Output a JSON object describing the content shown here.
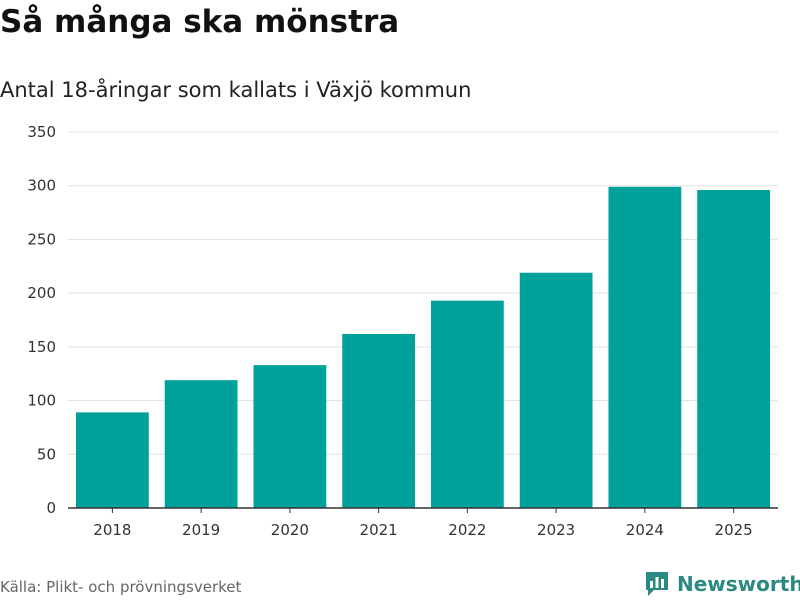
{
  "header": {
    "title": "Så många ska mönstra",
    "subtitle": "Antal 18-åringar som kallats i Växjö kommun"
  },
  "footer": {
    "source": "Källa: Plikt- och prövningsverket",
    "brand": "Newsworthy",
    "logo_icon": "newsworthy-chart-logo-icon"
  },
  "colors": {
    "bar": "#00a19a",
    "grid": "#e0e0e0",
    "axis": "#333333",
    "brand": "#2a8a82"
  },
  "chart_data": {
    "type": "bar",
    "title": "Så många ska mönstra",
    "subtitle": "Antal 18-åringar som kallats i Växjö kommun",
    "xlabel": "",
    "ylabel": "",
    "categories": [
      "2018",
      "2019",
      "2020",
      "2021",
      "2022",
      "2023",
      "2024",
      "2025"
    ],
    "values": [
      89,
      119,
      133,
      162,
      193,
      219,
      299,
      296
    ],
    "ylim": [
      0,
      350
    ],
    "yticks": [
      0,
      50,
      100,
      150,
      200,
      250,
      300,
      350
    ],
    "grid": true,
    "legend": "none"
  }
}
